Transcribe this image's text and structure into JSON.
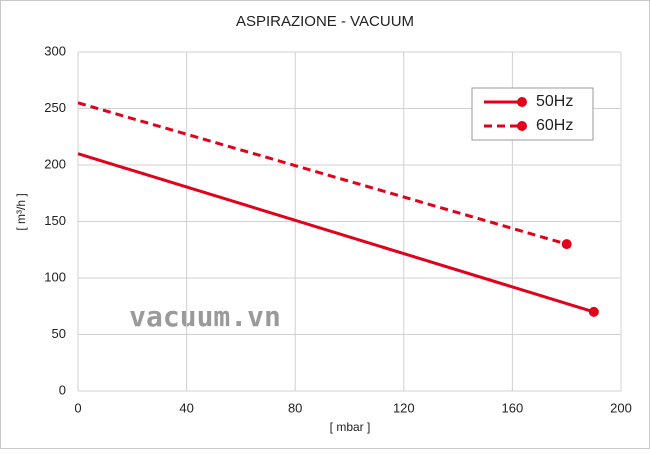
{
  "chart_data": {
    "type": "line",
    "title": "ASPIRAZIONE - VACUUM",
    "x_label": "[ mbar ]",
    "y_label": "[ m³/h ]",
    "annotation": "vacuum.vn",
    "xlim": [
      0,
      200
    ],
    "xticks": [
      0,
      40,
      80,
      120,
      160,
      200
    ],
    "ylim": [
      0,
      300
    ],
    "yticks": [
      0,
      50,
      100,
      150,
      200,
      250,
      300
    ],
    "grid": true,
    "legend": "upper right",
    "series": [
      {
        "name": "50Hz",
        "color": "#e3001b",
        "line_style": "solid",
        "x": [
          0,
          190
        ],
        "values": [
          210,
          70
        ]
      },
      {
        "name": "60Hz",
        "color": "#e3001b",
        "line_style": "dashed",
        "x": [
          0,
          180
        ],
        "values": [
          255,
          130
        ]
      }
    ]
  }
}
